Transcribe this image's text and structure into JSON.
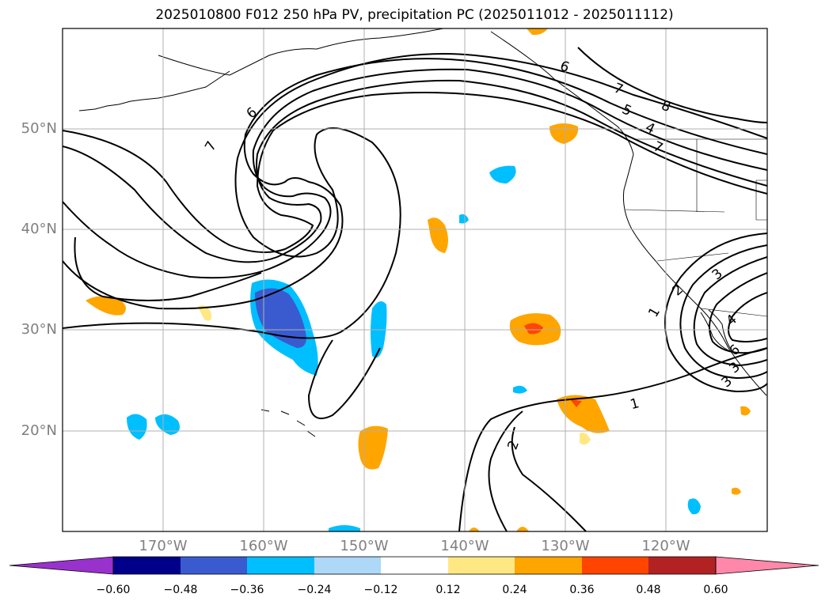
{
  "title": "2025010800 F012 250 hPa PV, precipitation PC (2025011012 - 2025011112)",
  "map": {
    "lat_labels": [
      {
        "text": "50°N",
        "lat": 50
      },
      {
        "text": "40°N",
        "lat": 40
      },
      {
        "text": "30°N",
        "lat": 30
      },
      {
        "text": "20°N",
        "lat": 20
      }
    ],
    "lon_labels": [
      {
        "text": "170°W",
        "lon": -170
      },
      {
        "text": "160°W",
        "lon": -160
      },
      {
        "text": "150°W",
        "lon": -150
      },
      {
        "text": "140°W",
        "lon": -140
      },
      {
        "text": "130°W",
        "lon": -130
      },
      {
        "text": "120°W",
        "lon": -120
      }
    ],
    "extent": {
      "lon_min": -180,
      "lon_max": -110,
      "lat_min": 10,
      "lat_max": 60
    },
    "contour_labels": [
      "6",
      "7",
      "6",
      "7",
      "5",
      "4",
      "8",
      "7",
      "1",
      "2",
      "3",
      "4",
      "3",
      "6",
      "1",
      "2",
      "3"
    ],
    "colors": {
      "line": "#000000",
      "grid": "#b0b0b0"
    }
  },
  "colorbar": {
    "tick_labels": [
      "−0.60",
      "−0.48",
      "−0.36",
      "−0.24",
      "−0.12",
      "0.12",
      "0.24",
      "0.36",
      "0.48",
      "0.60"
    ],
    "colors": [
      "#9932cc",
      "#00008b",
      "#3a5bd0",
      "#00bfff",
      "#add8f7",
      "#ffffff",
      "#ffe883",
      "#ffa500",
      "#ff4500",
      "#b22222",
      "#ff88aa"
    ]
  }
}
